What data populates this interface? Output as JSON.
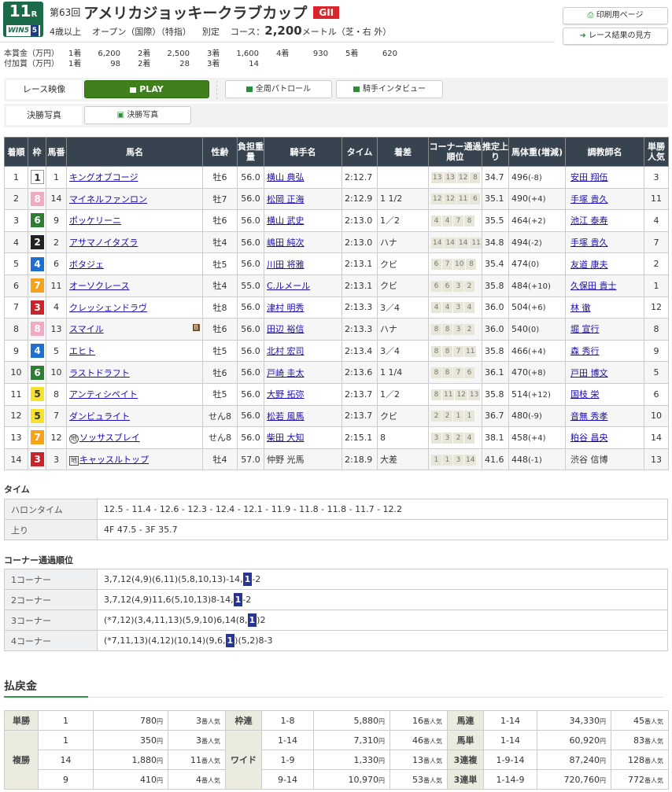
{
  "header": {
    "race_no": "11",
    "race_suffix": "R",
    "win5": "WIN5",
    "win5_no": "5",
    "kai": "第63回",
    "race_name": "アメリカジョッキークラブカップ",
    "grade": "GII",
    "conditions": [
      "4歳以上",
      "オープン（国際）（特指）",
      "別定"
    ],
    "course_label": "コース：",
    "distance": "2,200",
    "distance_unit": "メートル（芝・右 外）"
  },
  "prize": {
    "main_label": "本賞金（万円）",
    "main": [
      [
        "1着",
        "6,200"
      ],
      [
        "2着",
        "2,500"
      ],
      [
        "3着",
        "1,600"
      ],
      [
        "4着",
        "930"
      ],
      [
        "5着",
        "620"
      ]
    ],
    "extra_label": "付加賞（万円）",
    "extra": [
      [
        "1着",
        "98"
      ],
      [
        "2着",
        "28"
      ],
      [
        "3着",
        "14"
      ]
    ]
  },
  "buttons": {
    "print": "印刷用ページ",
    "howto": "レース結果の見方"
  },
  "media": {
    "video_label": "レース映像",
    "play": "PLAY",
    "patrol": "全周パトロール",
    "interview": "騎手インタビュー",
    "photo_label": "決勝写真",
    "photo": "決勝写真"
  },
  "table": {
    "headers": [
      "着順",
      "枠",
      "馬番",
      "馬名",
      "性齢",
      "負担重量",
      "騎手名",
      "タイム",
      "着差",
      "コーナー通過順位",
      "推定上り",
      "馬体重(増減)",
      "調教師名",
      "単勝人気"
    ],
    "waku_colors": {
      "1": "#ffffff",
      "2": "#222222",
      "3": "#c9242b",
      "4": "#1e6fd0",
      "5": "#f5e22b",
      "6": "#2e7d32",
      "7": "#f7a21b",
      "8": "#f2a9c4"
    },
    "rows": [
      [
        "1",
        "1",
        "1",
        "キングオブコージ",
        "牡6",
        "56.0",
        "横山 典弘",
        "2:12.7",
        "",
        [
          "13",
          "13",
          "12",
          "8"
        ],
        "34.7",
        "496",
        "(-8)",
        "安田 翔伍",
        "3"
      ],
      [
        "2",
        "8",
        "14",
        "マイネルファンロン",
        "牡7",
        "56.0",
        "松岡 正海",
        "2:12.9",
        "1 1/2",
        [
          "12",
          "12",
          "11",
          "6"
        ],
        "35.1",
        "490",
        "(+4)",
        "手塚 貴久",
        "11"
      ],
      [
        "3",
        "6",
        "9",
        "ポッケリーニ",
        "牡6",
        "56.0",
        "横山 武史",
        "2:13.0",
        "1／2",
        [
          "4",
          "4",
          "7",
          "8"
        ],
        "35.5",
        "464",
        "(+2)",
        "池江 泰寿",
        "4"
      ],
      [
        "4",
        "2",
        "2",
        "アサマノイタズラ",
        "牡4",
        "56.0",
        "嶋田 純次",
        "2:13.0",
        "ハナ",
        [
          "14",
          "14",
          "14",
          "11"
        ],
        "34.8",
        "494",
        "(-2)",
        "手塚 貴久",
        "7"
      ],
      [
        "5",
        "4",
        "6",
        "ボタジェ",
        "牡5",
        "56.0",
        "川田 将雅",
        "2:13.1",
        "クビ",
        [
          "6",
          "7",
          "10",
          "8"
        ],
        "35.4",
        "474",
        "(0)",
        "友道 康夫",
        "2"
      ],
      [
        "6",
        "7",
        "11",
        "オーソクレース",
        "牡4",
        "55.0",
        "C.ルメール",
        "2:13.1",
        "クビ",
        [
          "6",
          "6",
          "3",
          "2"
        ],
        "35.8",
        "484",
        "(+10)",
        "久保田 貴士",
        "1"
      ],
      [
        "7",
        "3",
        "4",
        "クレッシェンドラヴ",
        "牡8",
        "56.0",
        "津村 明秀",
        "2:13.3",
        "3／4",
        [
          "4",
          "4",
          "3",
          "4"
        ],
        "36.0",
        "504",
        "(+6)",
        "林 徹",
        "12"
      ],
      [
        "8",
        "8",
        "13",
        "スマイル",
        "牡6",
        "56.0",
        "田辺 裕信",
        "2:13.3",
        "ハナ",
        [
          "8",
          "8",
          "3",
          "2"
        ],
        "36.0",
        "540",
        "(0)",
        "堀 宣行",
        "8"
      ],
      [
        "9",
        "4",
        "5",
        "エヒト",
        "牡5",
        "56.0",
        "北村 宏司",
        "2:13.4",
        "3／4",
        [
          "8",
          "8",
          "7",
          "11"
        ],
        "35.8",
        "466",
        "(+4)",
        "森 秀行",
        "9"
      ],
      [
        "10",
        "6",
        "10",
        "ラストドラフト",
        "牡6",
        "56.0",
        "戸崎 圭太",
        "2:13.6",
        "1 1/4",
        [
          "8",
          "8",
          "7",
          "6"
        ],
        "36.1",
        "470",
        "(+8)",
        "戸田 博文",
        "5"
      ],
      [
        "11",
        "5",
        "8",
        "アンティシペイト",
        "牡5",
        "56.0",
        "大野 拓弥",
        "2:13.7",
        "1／2",
        [
          "8",
          "11",
          "12",
          "13"
        ],
        "35.8",
        "514",
        "(+12)",
        "国枝 栄",
        "6"
      ],
      [
        "12",
        "5",
        "7",
        "ダンビュライト",
        "せん8",
        "56.0",
        "松若 風馬",
        "2:13.7",
        "クビ",
        [
          "2",
          "2",
          "1",
          "1"
        ],
        "36.7",
        "480",
        "(-9)",
        "音無 秀孝",
        "10"
      ],
      [
        "13",
        "7",
        "12",
        "ソッサスブレイ",
        "せん8",
        "56.0",
        "柴田 大知",
        "2:15.1",
        "8",
        [
          "3",
          "3",
          "2",
          "4"
        ],
        "38.1",
        "458",
        "(+4)",
        "粕谷 昌央",
        "14"
      ],
      [
        "14",
        "3",
        "3",
        "キャッスルトップ",
        "牡4",
        "57.0",
        "仲野 光馬",
        "2:18.9",
        "大差",
        [
          "1",
          "1",
          "3",
          "14"
        ],
        "41.6",
        "448",
        "(-1)",
        "渋谷 信博",
        "13"
      ]
    ],
    "blinker_mark": "B",
    "blinker_row": "8",
    "chihou_mark": "地",
    "chihou_rows": {
      "13": "circle",
      "14": "square"
    },
    "unlinked_rows": [
      "14"
    ]
  },
  "time": {
    "title": "タイム",
    "rows": [
      [
        "ハロンタイム",
        "12.5 - 11.4 - 12.6 - 12.3 - 12.4 - 12.1 - 11.9 - 11.8 - 11.8 - 11.7 - 12.2"
      ],
      [
        "上り",
        "4F 47.5 - 3F 35.7"
      ]
    ]
  },
  "corner": {
    "title": "コーナー通過順位",
    "highlight": "1",
    "rows": [
      [
        "1コーナー",
        "3,7,12(4,9)(6,11)(5,8,10,13)-14,",
        "-2"
      ],
      [
        "2コーナー",
        "3,7,12(4,9)11,6(5,10,13)8-14,",
        "-2"
      ],
      [
        "3コーナー",
        "(*7,12)(3,4,11,13)(5,9,10)6,14(8,",
        ")2"
      ],
      [
        "4コーナー",
        "(*7,11,13)(4,12)(10,14)(9,6,",
        ")(5,2)8-3"
      ]
    ]
  },
  "payout": {
    "title": "払戻金",
    "yen": "円",
    "ninki": "番人気",
    "rows": [
      [
        [
          "単勝",
          "1",
          "780",
          "3"
        ],
        [
          "枠連",
          "1-8",
          "5,880",
          "16"
        ],
        [
          "馬連",
          "1-14",
          "34,330",
          "45"
        ]
      ],
      [
        [
          "複勝",
          "1",
          "350",
          "3"
        ],
        [
          "ワイド",
          "1-14",
          "7,310",
          "46"
        ],
        [
          "馬単",
          "1-14",
          "60,920",
          "83"
        ]
      ],
      [
        [
          "",
          "14",
          "1,880",
          "11"
        ],
        [
          "",
          "1-9",
          "1,330",
          "13"
        ],
        [
          "3連複",
          "1-9-14",
          "87,240",
          "128"
        ]
      ],
      [
        [
          "",
          "9",
          "410",
          "4"
        ],
        [
          "",
          "9-14",
          "10,970",
          "53"
        ],
        [
          "3連単",
          "1-14-9",
          "720,760",
          "772"
        ]
      ]
    ]
  }
}
